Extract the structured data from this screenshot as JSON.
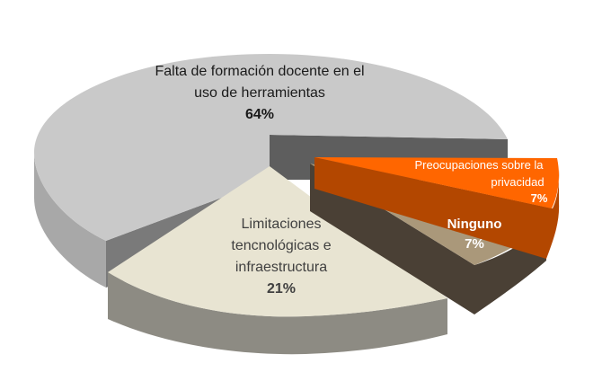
{
  "chart_data": {
    "type": "pie",
    "style": "3d-exploded",
    "title": "",
    "slices": [
      {
        "label_lines": [
          "Falta de formación docente en el",
          "uso de herramientas"
        ],
        "value": 64,
        "pct_label": "64%",
        "color": "#c9c9c9",
        "side_color": "#8f8f8f"
      },
      {
        "label_lines": [
          "Preocupaciones sobre la",
          "privacidad"
        ],
        "value": 7,
        "pct_label": "7%",
        "color": "#ff6600",
        "side_color": "#b34700",
        "label_color": "#ffffff"
      },
      {
        "label_lines": [
          "Ninguno"
        ],
        "value": 7,
        "pct_label": "7%",
        "color": "#aa987a",
        "side_color": "#4a4035",
        "label_color": "#ffffff"
      },
      {
        "label_lines": [
          "Limitaciones",
          "tencnológicas e",
          "infraestructura"
        ],
        "value": 21,
        "pct_label": "21%",
        "color": "#e8e4d2",
        "side_color": "#8d8b83",
        "label_color": "#404040"
      }
    ]
  }
}
